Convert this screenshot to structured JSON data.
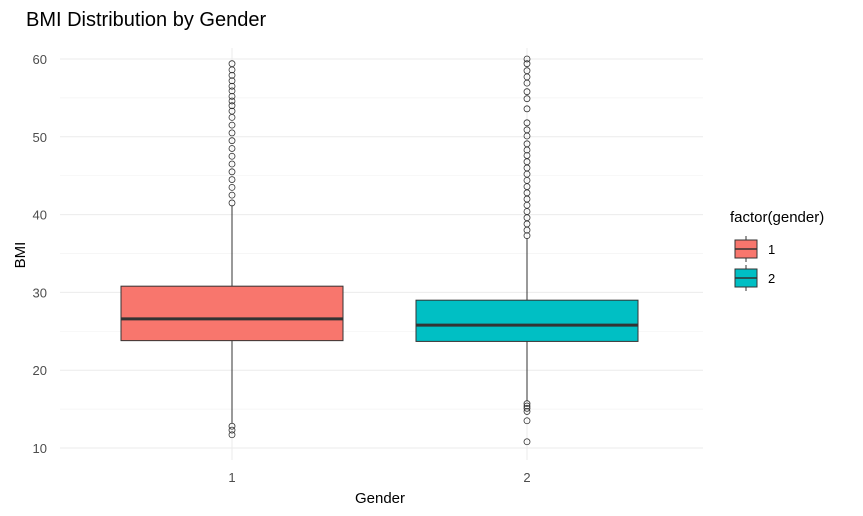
{
  "chart_data": {
    "type": "boxplot",
    "title": "BMI Distribution by  Gender",
    "xlabel": "Gender",
    "ylabel": "BMI",
    "categories": [
      "1",
      "2"
    ],
    "ylim": [
      8.5,
      62
    ],
    "yticks": [
      10,
      20,
      30,
      40,
      50,
      60
    ],
    "grid": true,
    "legend": {
      "title": "factor(gender)",
      "placement": "right",
      "entries": [
        "1",
        "2"
      ]
    },
    "series": [
      {
        "category": "1",
        "color": "#F8766D",
        "q1": 23.8,
        "median": 26.6,
        "q3": 30.8,
        "whisker_low": 13.2,
        "whisker_high": 41.2,
        "outliers": [
          11.7,
          12.3,
          12.8,
          41.5,
          42.5,
          43.5,
          44.5,
          45.5,
          46.5,
          47.5,
          48.5,
          49.5,
          50.5,
          51.5,
          52.5,
          53.3,
          54.0,
          54.6,
          55.2,
          55.9,
          56.5,
          57.2,
          57.9,
          58.6,
          59.4
        ]
      },
      {
        "category": "2",
        "color": "#00BFC4",
        "q1": 23.7,
        "median": 25.8,
        "q3": 29.0,
        "whisker_low": 16.0,
        "whisker_high": 37.0,
        "outliers": [
          10.8,
          13.5,
          14.7,
          15.1,
          15.4,
          15.7,
          37.3,
          38.0,
          38.8,
          39.6,
          40.4,
          41.2,
          42.0,
          42.8,
          43.6,
          44.4,
          45.2,
          46.0,
          46.8,
          47.6,
          48.3,
          49.1,
          50.1,
          50.9,
          51.8,
          53.6,
          54.9,
          55.8,
          56.9,
          57.7,
          58.5,
          59.4,
          60.0
        ]
      }
    ]
  }
}
